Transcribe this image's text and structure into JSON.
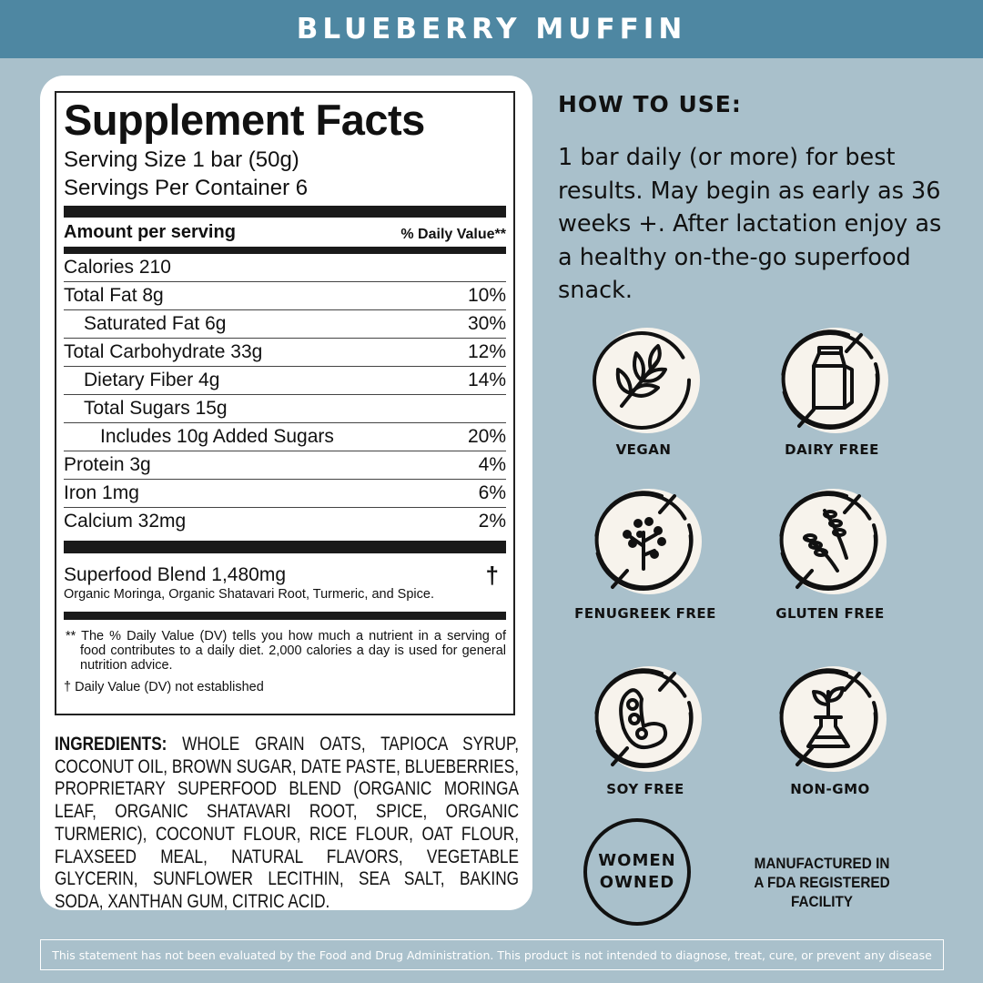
{
  "header": {
    "title": "BLUEBERRY MUFFIN"
  },
  "facts": {
    "title": "Supplement Facts",
    "serving_size": "Serving Size 1 bar (50g)",
    "servings_per_container": "Servings Per Container 6",
    "amount_label": "Amount per serving",
    "dv_label": "% Daily Value**",
    "rows": [
      {
        "label": "Calories 210",
        "dv": ""
      },
      {
        "label": "Total Fat 8g",
        "dv": "10%"
      },
      {
        "label": "Saturated Fat 6g",
        "dv": "30%"
      },
      {
        "label": "Total Carbohydrate 33g",
        "dv": "12%"
      },
      {
        "label": "Dietary Fiber 4g",
        "dv": "14%"
      },
      {
        "label": "Total Sugars 15g",
        "dv": ""
      },
      {
        "label": "Includes 10g Added Sugars",
        "dv": "20%"
      },
      {
        "label": "Protein 3g",
        "dv": "4%"
      },
      {
        "label": "Iron 1mg",
        "dv": "6%"
      },
      {
        "label": "Calcium 32mg",
        "dv": "2%"
      }
    ],
    "blend": "Superfood Blend 1,480mg",
    "blend_dagger": "†",
    "blend_sub": "Organic Moringa, Organic Shatavari Root, Turmeric, and Spice.",
    "footnote_dv": "** The % Daily Value (DV) tells you how much a nutrient in a serving of food contributes to a daily diet. 2,000 calories a day is used for general nutrition advice.",
    "footnote_dagger": "† Daily Value (DV) not established"
  },
  "ingredients": {
    "label": "INGREDIENTS:",
    "text": " WHOLE GRAIN OATS, TAPIOCA SYRUP, COCONUT OIL, BROWN SUGAR, DATE PASTE, BLUEBERRIES, PROPRIETARY SUPERFOOD BLEND (ORGANIC MORINGA LEAF, ORGANIC SHATAVARI ROOT, SPICE, ORGANIC TURMERIC), COCONUT FLOUR, RICE FLOUR, OAT FLOUR, FLAXSEED MEAL, NATURAL FLAVORS, VEGETABLE GLYCERIN, SUNFLOWER LECITHIN, SEA SALT, BAKING SODA, XANTHAN GUM, CITRIC ACID."
  },
  "how_to_use": {
    "title": "HOW TO USE:",
    "text": "1 bar daily (or more) for best results. May begin as early as 36 weeks +. After lactation enjoy as a healthy on-the-go superfood snack."
  },
  "badges": [
    {
      "label": "VEGAN",
      "icon": "leaf-icon"
    },
    {
      "label": "DAIRY FREE",
      "icon": "milk-carton-icon"
    },
    {
      "label": "FENUGREEK FREE",
      "icon": "fenugreek-plant-icon"
    },
    {
      "label": "GLUTEN FREE",
      "icon": "wheat-icon"
    },
    {
      "label": "SOY FREE",
      "icon": "soybean-icon"
    },
    {
      "label": "NON-GMO",
      "icon": "flask-plant-icon"
    }
  ],
  "women_owned": {
    "line1": "WOMEN",
    "line2": "OWNED"
  },
  "fda": {
    "line1": "MANUFACTURED IN",
    "line2": "A FDA REGISTERED",
    "line3": "FACILITY"
  },
  "disclaimer": "This statement has not been evaluated by the Food and Drug Administration. This product is not intended to diagnose, treat, cure, or prevent any disease",
  "colors": {
    "header": "#4e87a2",
    "background": "#a9c0cb",
    "badge_fill": "#f7f3ec",
    "ink": "#111111"
  }
}
